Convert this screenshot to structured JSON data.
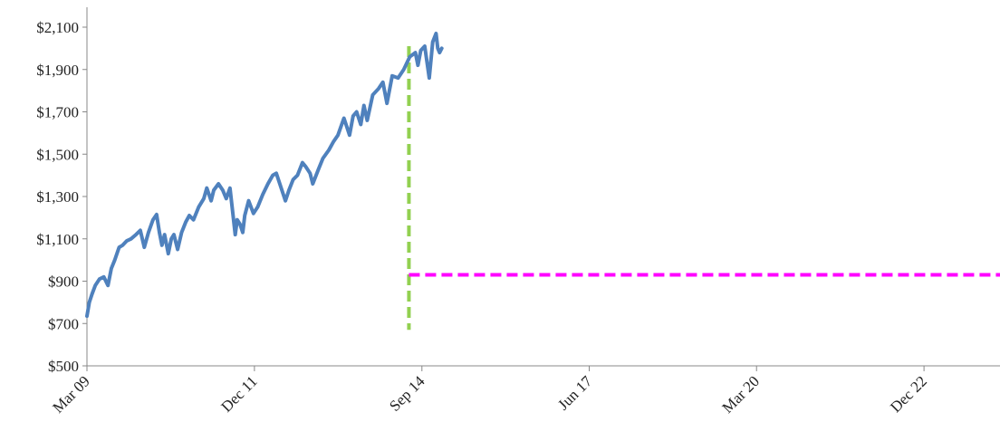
{
  "chart_data": {
    "type": "line",
    "title": "",
    "xlabel": "",
    "ylabel": "",
    "ylim": [
      500,
      2100
    ],
    "yticks": [
      500,
      700,
      900,
      1100,
      1300,
      1500,
      1700,
      1900,
      2100
    ],
    "ytick_labels": [
      "$500",
      "$700",
      "$900",
      "$1,100",
      "$1,300",
      "$1,500",
      "$1,700",
      "$1,900",
      "$2,100"
    ],
    "xlim": [
      "2009-03-01",
      "2024-03-01"
    ],
    "xticks": [
      "2009-03-01",
      "2011-12-01",
      "2014-09-01",
      "2017-06-01",
      "2020-03-01",
      "2022-12-01"
    ],
    "xtick_labels": [
      "Mar 09",
      "Dec 11",
      "Sep 14",
      "Jun 17",
      "Mar 20",
      "Dec 22"
    ],
    "grid": false,
    "legend": "none",
    "series": [
      {
        "color": "#4f81bd",
        "style": "solid",
        "x": [
          "2009-03-01",
          "2009-03-15",
          "2009-04-01",
          "2009-04-20",
          "2009-05-15",
          "2009-06-10",
          "2009-07-05",
          "2009-07-25",
          "2009-08-15",
          "2009-09-10",
          "2009-10-01",
          "2009-10-25",
          "2009-11-20",
          "2009-12-20",
          "2010-01-15",
          "2010-02-08",
          "2010-03-05",
          "2010-04-01",
          "2010-04-23",
          "2010-05-10",
          "2010-05-25",
          "2010-06-10",
          "2010-07-02",
          "2010-07-20",
          "2010-08-05",
          "2010-08-27",
          "2010-09-20",
          "2010-10-15",
          "2010-11-05",
          "2010-11-30",
          "2010-12-31",
          "2011-01-31",
          "2011-02-18",
          "2011-03-16",
          "2011-04-01",
          "2011-04-29",
          "2011-05-25",
          "2011-06-15",
          "2011-07-07",
          "2011-08-08",
          "2011-08-20",
          "2011-09-05",
          "2011-09-22",
          "2011-10-04",
          "2011-10-27",
          "2011-11-25",
          "2011-12-20",
          "2012-01-20",
          "2012-02-20",
          "2012-03-20",
          "2012-04-10",
          "2012-05-01",
          "2012-06-04",
          "2012-06-25",
          "2012-07-20",
          "2012-08-15",
          "2012-09-14",
          "2012-10-05",
          "2012-10-30",
          "2012-11-15",
          "2012-12-20",
          "2013-01-15",
          "2013-02-20",
          "2013-03-20",
          "2013-04-15",
          "2013-05-21",
          "2013-06-24",
          "2013-07-15",
          "2013-08-05",
          "2013-08-30",
          "2013-09-18",
          "2013-10-08",
          "2013-11-10",
          "2013-12-15",
          "2014-01-10",
          "2014-02-03",
          "2014-03-07",
          "2014-04-11",
          "2014-05-15",
          "2014-06-20",
          "2014-07-24",
          "2014-08-08",
          "2014-08-25",
          "2014-09-18",
          "2014-10-15",
          "2014-11-05",
          "2014-11-25",
          "2014-12-05",
          "2014-12-16",
          "2014-12-29"
        ],
        "y": [
          735,
          800,
          840,
          880,
          910,
          920,
          880,
          960,
          1000,
          1060,
          1070,
          1090,
          1100,
          1120,
          1140,
          1060,
          1130,
          1190,
          1215,
          1130,
          1070,
          1120,
          1030,
          1100,
          1120,
          1050,
          1130,
          1180,
          1210,
          1190,
          1250,
          1290,
          1340,
          1280,
          1330,
          1360,
          1330,
          1290,
          1340,
          1120,
          1190,
          1170,
          1130,
          1210,
          1280,
          1220,
          1250,
          1310,
          1360,
          1400,
          1410,
          1360,
          1280,
          1330,
          1380,
          1400,
          1460,
          1440,
          1410,
          1360,
          1430,
          1480,
          1520,
          1560,
          1590,
          1670,
          1590,
          1680,
          1700,
          1640,
          1730,
          1660,
          1780,
          1810,
          1840,
          1740,
          1870,
          1860,
          1900,
          1960,
          1980,
          1920,
          1990,
          2010,
          1860,
          2030,
          2070,
          2000,
          1980,
          2000
        ]
      }
    ],
    "reference_lines": [
      {
        "orientation": "vertical",
        "x": "2014-06-15",
        "y_from": 670,
        "y_to": 2010,
        "color": "#92d050",
        "style": "dashed"
      },
      {
        "orientation": "horizontal",
        "y": 930,
        "x_from": "2014-06-15",
        "x_to": "2024-03-01",
        "color": "#ff00ff",
        "style": "dashed"
      }
    ]
  }
}
